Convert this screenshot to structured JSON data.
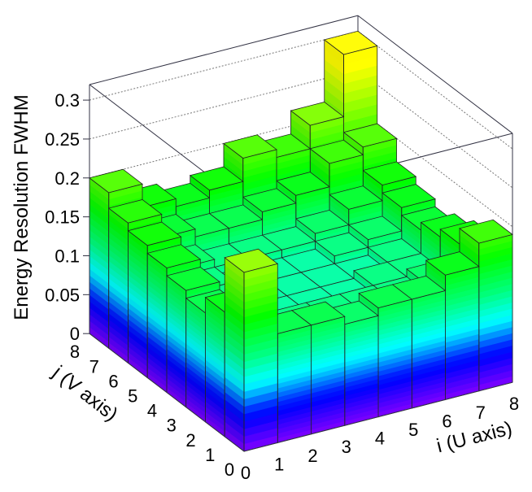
{
  "chart_data": {
    "type": "lego3d",
    "title": "",
    "xlabel": "i (U axis)",
    "ylabel": "j (V axis)",
    "zlabel": "Energy Resolution FWHM",
    "x_ticks": [
      "0",
      "1",
      "2",
      "3",
      "4",
      "5",
      "6",
      "7",
      "8"
    ],
    "y_ticks": [
      "0",
      "1",
      "2",
      "3",
      "4",
      "5",
      "6",
      "7",
      "8"
    ],
    "z_ticks": [
      "0",
      "0.05",
      "0.1",
      "0.15",
      "0.2",
      "0.25",
      "0.3"
    ],
    "xlim": [
      0,
      8
    ],
    "ylim": [
      0,
      8
    ],
    "zlim": [
      0,
      0.32
    ],
    "grid": true,
    "palette": "rainbow (purple-blue-cyan-green-yellow)",
    "values_by_j_then_i": [
      [
        0.23,
        0.14,
        0.14,
        0.13,
        0.14,
        0.14,
        0.16,
        0.19
      ],
      [
        0.16,
        0.12,
        0.12,
        0.12,
        0.12,
        0.12,
        0.13,
        0.17
      ],
      [
        0.14,
        0.12,
        0.11,
        0.11,
        0.11,
        0.12,
        0.12,
        0.16
      ],
      [
        0.15,
        0.12,
        0.11,
        0.11,
        0.11,
        0.11,
        0.12,
        0.15
      ],
      [
        0.16,
        0.12,
        0.11,
        0.11,
        0.11,
        0.12,
        0.13,
        0.16
      ],
      [
        0.17,
        0.13,
        0.12,
        0.12,
        0.12,
        0.13,
        0.15,
        0.17
      ],
      [
        0.18,
        0.15,
        0.14,
        0.14,
        0.15,
        0.16,
        0.19,
        0.2
      ],
      [
        0.2,
        0.17,
        0.16,
        0.17,
        0.2,
        0.19,
        0.22,
        0.3
      ]
    ]
  }
}
